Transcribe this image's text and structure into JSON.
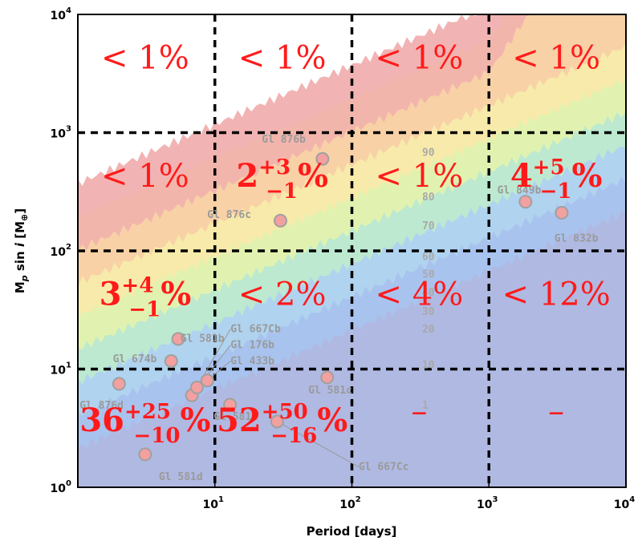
{
  "chart_data": {
    "type": "scatter",
    "xlabel": "Period [days]",
    "ylabel_parts": {
      "m": "M",
      "sub": "p",
      "sin": " sin ",
      "i": "i",
      "unit": " [M",
      "unitsub": "⊕",
      "close": "]"
    },
    "xscale": "log",
    "yscale": "log",
    "xlim": [
      1,
      10000
    ],
    "ylim": [
      1,
      10000
    ],
    "x_ticks": [
      {
        "value": 10,
        "base": "10",
        "exp": "1"
      },
      {
        "value": 100,
        "base": "10",
        "exp": "2"
      },
      {
        "value": 1000,
        "base": "10",
        "exp": "3"
      },
      {
        "value": 10000,
        "base": "10",
        "exp": "4"
      }
    ],
    "y_ticks": [
      {
        "value": 1,
        "base": "10",
        "exp": "0"
      },
      {
        "value": 10,
        "base": "10",
        "exp": "1"
      },
      {
        "value": 100,
        "base": "10",
        "exp": "2"
      },
      {
        "value": 1000,
        "base": "10",
        "exp": "3"
      },
      {
        "value": 10000,
        "base": "10",
        "exp": "4"
      }
    ],
    "grid_x": [
      10,
      100,
      1000
    ],
    "grid_y": [
      10,
      100,
      1000
    ],
    "planets": [
      {
        "x": 2.0,
        "y": 7.5
      },
      {
        "x": 3.1,
        "y": 1.9
      },
      {
        "x": 4.8,
        "y": 11.7
      },
      {
        "x": 5.4,
        "y": 18.0
      },
      {
        "x": 6.8,
        "y": 6.0
      },
      {
        "x": 7.4,
        "y": 7.0
      },
      {
        "x": 8.8,
        "y": 8.0
      },
      {
        "x": 12.9,
        "y": 5.0
      },
      {
        "x": 28.5,
        "y": 3.6
      },
      {
        "x": 30.1,
        "y": 180
      },
      {
        "x": 61.0,
        "y": 600
      },
      {
        "x": 66.0,
        "y": 8.5
      },
      {
        "x": 1850,
        "y": 260
      },
      {
        "x": 3400,
        "y": 210
      }
    ],
    "planet_labels": [
      {
        "text": "Gl 876b",
        "x": 22,
        "y": 820
      },
      {
        "text": "Gl 876c",
        "x": 8.8,
        "y": 190
      },
      {
        "text": "Gl 849b",
        "x": 1150,
        "y": 305
      },
      {
        "text": "Gl 832b",
        "x": 3000,
        "y": 120
      },
      {
        "text": "Gl 581b",
        "x": 5.6,
        "y": 17
      },
      {
        "text": "Gl 667Cb",
        "x": 13,
        "y": 20.5
      },
      {
        "text": "Gl 176b",
        "x": 13,
        "y": 15
      },
      {
        "text": "Gl 433b",
        "x": 13,
        "y": 11
      },
      {
        "text": "Gl 674b",
        "x": 1.8,
        "y": 11.4
      },
      {
        "text": "Gl 581c",
        "x": 48,
        "y": 6.2
      },
      {
        "text": "Gl 876d",
        "x": 1.03,
        "y": 4.6
      },
      {
        "text": "Gl 581e",
        "x": 9.8,
        "y": 3.7
      },
      {
        "text": "Gl 581d",
        "x": 3.9,
        "y": 1.15
      },
      {
        "text": "Gl 667Cc",
        "x": 112,
        "y": 1.4
      }
    ],
    "contour_labels": [
      {
        "text": "90",
        "x": 300,
        "y": 690
      },
      {
        "text": "80",
        "x": 300,
        "y": 290
      },
      {
        "text": "70",
        "x": 300,
        "y": 165
      },
      {
        "text": "60",
        "x": 300,
        "y": 90
      },
      {
        "text": "50",
        "x": 300,
        "y": 64
      },
      {
        "text": "40",
        "x": 300,
        "y": 45
      },
      {
        "text": "30",
        "x": 300,
        "y": 31
      },
      {
        "text": "20",
        "x": 300,
        "y": 22
      },
      {
        "text": "10",
        "x": 300,
        "y": 11
      },
      {
        "text": "1",
        "x": 300,
        "y": 5
      }
    ],
    "occurrence_rates": [
      {
        "main": "< 1%",
        "sup": "",
        "sub": "",
        "suffix": "",
        "x": 3.1,
        "y": 4200
      },
      {
        "main": "< 1%",
        "sup": "",
        "sub": "",
        "suffix": "",
        "x": 31,
        "y": 4200
      },
      {
        "main": "< 1%",
        "sup": "",
        "sub": "",
        "suffix": "",
        "x": 310,
        "y": 4200
      },
      {
        "main": "< 1%",
        "sup": "",
        "sub": "",
        "suffix": "",
        "x": 3100,
        "y": 4200
      },
      {
        "main": "< 1%",
        "sup": "",
        "sub": "",
        "suffix": "",
        "x": 3.1,
        "y": 420
      },
      {
        "main": "2",
        "sup": "+3",
        "sub": "−1",
        "suffix": "%",
        "x": 31,
        "y": 420
      },
      {
        "main": "< 1%",
        "sup": "",
        "sub": "",
        "suffix": "",
        "x": 310,
        "y": 420
      },
      {
        "main": "4",
        "sup": "+5",
        "sub": "−1",
        "suffix": "%",
        "x": 3100,
        "y": 420
      },
      {
        "main": "3",
        "sup": "+4",
        "sub": "−1",
        "suffix": "%",
        "x": 3.1,
        "y": 42
      },
      {
        "main": "< 2%",
        "sup": "",
        "sub": "",
        "suffix": "",
        "x": 31,
        "y": 42
      },
      {
        "main": "< 4%",
        "sup": "",
        "sub": "",
        "suffix": "",
        "x": 310,
        "y": 42
      },
      {
        "main": "< 12%",
        "sup": "",
        "sub": "",
        "suffix": "",
        "x": 3100,
        "y": 42
      },
      {
        "main": "36",
        "sup": "+25",
        "sub": "−10",
        "suffix": "%",
        "x": 3.1,
        "y": 3.6
      },
      {
        "main": "52",
        "sup": "+50",
        "sub": "−16",
        "suffix": "%",
        "x": 31,
        "y": 3.6
      },
      {
        "main": "–",
        "sup": "",
        "sub": "",
        "suffix": "",
        "x": 310,
        "y": 4.3
      },
      {
        "main": "–",
        "sup": "",
        "sub": "",
        "suffix": "",
        "x": 3100,
        "y": 4.3
      }
    ],
    "colors": {
      "rate_text": "#ff1a1a",
      "planet_fill": "#f2a0a0",
      "planet_edge": "#a0a0a0",
      "grid": "#000000",
      "bands": [
        "#b0b8e0",
        "#a9c2ee",
        "#afd2f0",
        "#b9e8d2",
        "#dff2b0",
        "#f7ebaa",
        "#f8d3a6",
        "#f2b5aa",
        "#eea6a6"
      ]
    }
  }
}
